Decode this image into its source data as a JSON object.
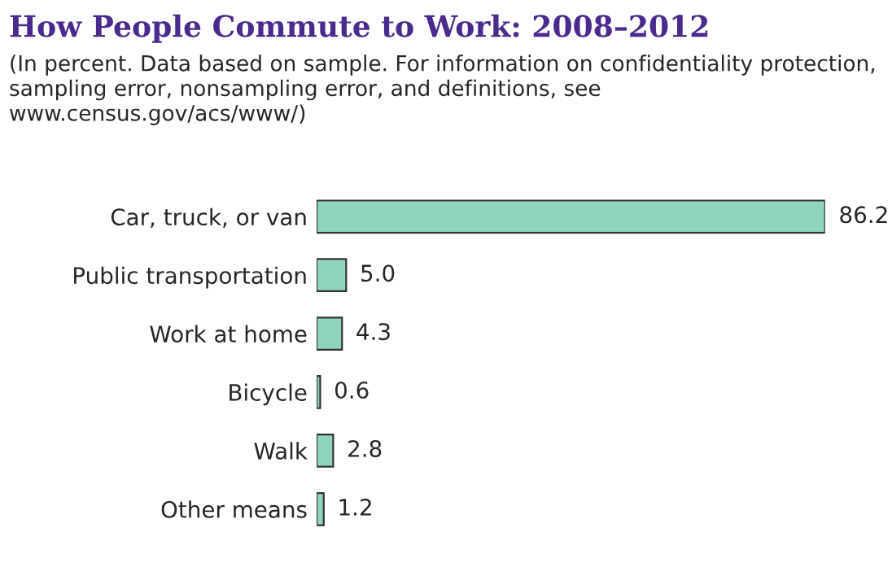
{
  "chart_data": {
    "type": "bar",
    "orientation": "horizontal",
    "title": "How People Commute to Work: 2008–2012",
    "subtitle": "(In percent. Data based on sample. For information on confidentiality protection, sampling error, nonsampling error, and definitions, see www.census.gov/acs/www/)",
    "categories": [
      "Car, truck, or van",
      "Public transportation",
      "Work at home",
      "Bicycle",
      "Walk",
      "Other means"
    ],
    "values": [
      86.2,
      5.0,
      4.3,
      0.6,
      2.8,
      1.2
    ],
    "value_labels": [
      "86.2",
      "5.0",
      "4.3",
      "0.6",
      "2.8",
      "1.2"
    ],
    "color": "#8fd4bc",
    "grid": false,
    "legend": false
  }
}
